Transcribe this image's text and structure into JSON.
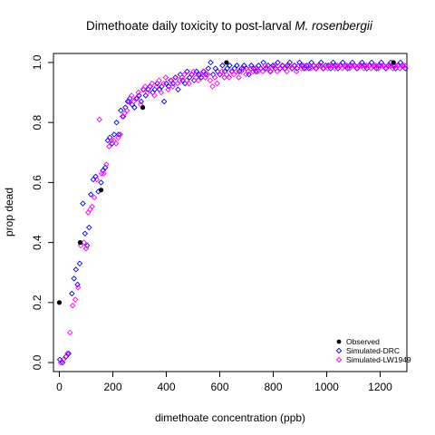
{
  "chart_data": {
    "type": "scatter",
    "title": "Dimethoate daily toxicity to post-larval ",
    "title_italic": "M. rosenbergii",
    "xlabel": "dimethoate concentration (ppb)",
    "ylabel": "prop dead",
    "xlim": [
      -22,
      1300
    ],
    "ylim": [
      -0.03,
      1.03
    ],
    "xticks": [
      0,
      200,
      400,
      600,
      800,
      1000,
      1200
    ],
    "yticks": [
      0.0,
      0.2,
      0.4,
      0.6,
      0.8,
      1.0
    ],
    "ytick_labels": [
      "0.0",
      "0.2",
      "0.4",
      "0.6",
      "0.8",
      "1.0"
    ],
    "grid": false,
    "legend_position": "bottom-right",
    "series": [
      {
        "name": "Observed",
        "marker": "filled-circle",
        "color": "#000000",
        "points": [
          [
            0,
            0.2
          ],
          [
            78,
            0.4
          ],
          [
            156,
            0.575
          ],
          [
            312,
            0.85
          ],
          [
            625,
            1.0
          ],
          [
            1250,
            1.0
          ]
        ]
      },
      {
        "name": "Simulated-DRC",
        "marker": "open-diamond",
        "color": "#0000ff",
        "points": [
          [
            2,
            0.01
          ],
          [
            12,
            0.0
          ],
          [
            25,
            0.02
          ],
          [
            35,
            0.03
          ],
          [
            47,
            0.23
          ],
          [
            55,
            0.28
          ],
          [
            62,
            0.31
          ],
          [
            68,
            0.26
          ],
          [
            76,
            0.33
          ],
          [
            88,
            0.53
          ],
          [
            96,
            0.43
          ],
          [
            104,
            0.39
          ],
          [
            111,
            0.45
          ],
          [
            118,
            0.56
          ],
          [
            127,
            0.61
          ],
          [
            136,
            0.62
          ],
          [
            146,
            0.57
          ],
          [
            156,
            0.6
          ],
          [
            163,
            0.64
          ],
          [
            172,
            0.65
          ],
          [
            181,
            0.74
          ],
          [
            189,
            0.75
          ],
          [
            197,
            0.73
          ],
          [
            205,
            0.76
          ],
          [
            214,
            0.8
          ],
          [
            222,
            0.76
          ],
          [
            230,
            0.84
          ],
          [
            239,
            0.82
          ],
          [
            247,
            0.85
          ],
          [
            256,
            0.87
          ],
          [
            264,
            0.88
          ],
          [
            272,
            0.86
          ],
          [
            281,
            0.85
          ],
          [
            290,
            0.88
          ],
          [
            298,
            0.89
          ],
          [
            306,
            0.87
          ],
          [
            315,
            0.91
          ],
          [
            323,
            0.89
          ],
          [
            332,
            0.91
          ],
          [
            340,
            0.92
          ],
          [
            349,
            0.9
          ],
          [
            357,
            0.91
          ],
          [
            366,
            0.93
          ],
          [
            374,
            0.91
          ],
          [
            383,
            0.92
          ],
          [
            392,
            0.87
          ],
          [
            400,
            0.93
          ],
          [
            409,
            0.92
          ],
          [
            418,
            0.94
          ],
          [
            426,
            0.93
          ],
          [
            435,
            0.95
          ],
          [
            444,
            0.91
          ],
          [
            452,
            0.96
          ],
          [
            461,
            0.94
          ],
          [
            470,
            0.93
          ],
          [
            478,
            0.97
          ],
          [
            487,
            0.95
          ],
          [
            496,
            0.96
          ],
          [
            504,
            0.94
          ],
          [
            513,
            0.97
          ],
          [
            522,
            0.96
          ],
          [
            531,
            0.95
          ],
          [
            540,
            0.97
          ],
          [
            548,
            0.96
          ],
          [
            557,
            0.98
          ],
          [
            566,
            1.0
          ],
          [
            575,
            0.96
          ],
          [
            584,
            0.98
          ],
          [
            592,
            0.97
          ],
          [
            601,
            0.96
          ],
          [
            610,
            0.99
          ],
          [
            619,
            0.97
          ],
          [
            628,
            0.98
          ],
          [
            637,
            0.99
          ],
          [
            646,
            0.97
          ],
          [
            655,
            0.98
          ],
          [
            664,
            0.99
          ],
          [
            673,
            0.97
          ],
          [
            682,
            0.98
          ],
          [
            691,
            0.99
          ],
          [
            700,
            0.98
          ],
          [
            709,
            0.96
          ],
          [
            718,
            0.99
          ],
          [
            727,
            0.98
          ],
          [
            736,
            0.97
          ],
          [
            745,
            0.99
          ],
          [
            754,
            0.98
          ],
          [
            763,
            1.0
          ],
          [
            772,
            0.98
          ],
          [
            781,
            0.99
          ],
          [
            790,
            0.97
          ],
          [
            799,
            0.99
          ],
          [
            808,
            0.98
          ],
          [
            817,
            1.0
          ],
          [
            826,
            0.98
          ],
          [
            835,
            0.99
          ],
          [
            844,
            0.98
          ],
          [
            853,
            0.99
          ],
          [
            862,
            1.0
          ],
          [
            871,
            0.98
          ],
          [
            880,
            0.99
          ],
          [
            889,
            0.98
          ],
          [
            898,
            1.0
          ],
          [
            907,
            0.99
          ],
          [
            916,
            0.98
          ],
          [
            925,
            0.99
          ],
          [
            934,
            0.98
          ],
          [
            943,
            1.0
          ],
          [
            952,
            0.99
          ],
          [
            961,
            0.98
          ],
          [
            970,
            0.99
          ],
          [
            979,
            1.0
          ],
          [
            988,
            0.98
          ],
          [
            997,
            0.99
          ],
          [
            1006,
            0.99
          ],
          [
            1015,
            0.98
          ],
          [
            1024,
            1.0
          ],
          [
            1033,
            0.99
          ],
          [
            1042,
            0.98
          ],
          [
            1051,
            0.99
          ],
          [
            1060,
            1.0
          ],
          [
            1069,
            0.99
          ],
          [
            1078,
            0.98
          ],
          [
            1087,
            0.99
          ],
          [
            1096,
            1.0
          ],
          [
            1105,
            0.99
          ],
          [
            1114,
            0.98
          ],
          [
            1123,
            0.99
          ],
          [
            1132,
            1.0
          ],
          [
            1141,
            0.99
          ],
          [
            1150,
            0.98
          ],
          [
            1159,
            0.99
          ],
          [
            1168,
            1.0
          ],
          [
            1177,
            0.99
          ],
          [
            1186,
            0.98
          ],
          [
            1195,
            0.99
          ],
          [
            1204,
            1.0
          ],
          [
            1213,
            0.99
          ],
          [
            1222,
            0.98
          ],
          [
            1231,
            0.99
          ],
          [
            1240,
            1.0
          ],
          [
            1249,
            0.99
          ],
          [
            1258,
            0.98
          ],
          [
            1267,
            0.99
          ],
          [
            1276,
            1.0
          ],
          [
            1285,
            0.99
          ],
          [
            1294,
            0.98
          ]
        ]
      },
      {
        "name": "Simulated-LW1949",
        "marker": "open-diamond",
        "color": "#ff00ff",
        "points": [
          [
            5,
            0.0
          ],
          [
            15,
            0.01
          ],
          [
            30,
            0.03
          ],
          [
            40,
            0.1
          ],
          [
            50,
            0.19
          ],
          [
            60,
            0.21
          ],
          [
            70,
            0.25
          ],
          [
            80,
            0.39
          ],
          [
            92,
            0.4
          ],
          [
            100,
            0.38
          ],
          [
            108,
            0.5
          ],
          [
            115,
            0.51
          ],
          [
            123,
            0.52
          ],
          [
            131,
            0.55
          ],
          [
            140,
            0.61
          ],
          [
            150,
            0.81
          ],
          [
            158,
            0.63
          ],
          [
            166,
            0.63
          ],
          [
            176,
            0.66
          ],
          [
            186,
            0.72
          ],
          [
            195,
            0.74
          ],
          [
            204,
            0.74
          ],
          [
            212,
            0.73
          ],
          [
            220,
            0.75
          ],
          [
            228,
            0.76
          ],
          [
            236,
            0.82
          ],
          [
            244,
            0.83
          ],
          [
            253,
            0.84
          ],
          [
            261,
            0.87
          ],
          [
            270,
            0.89
          ],
          [
            278,
            0.87
          ],
          [
            287,
            0.88
          ],
          [
            296,
            0.9
          ],
          [
            304,
            0.86
          ],
          [
            313,
            0.91
          ],
          [
            321,
            0.92
          ],
          [
            330,
            0.9
          ],
          [
            338,
            0.92
          ],
          [
            347,
            0.93
          ],
          [
            356,
            0.89
          ],
          [
            364,
            0.92
          ],
          [
            373,
            0.94
          ],
          [
            381,
            0.9
          ],
          [
            390,
            0.93
          ],
          [
            398,
            0.95
          ],
          [
            407,
            0.91
          ],
          [
            416,
            0.94
          ],
          [
            424,
            0.92
          ],
          [
            433,
            0.95
          ],
          [
            442,
            0.93
          ],
          [
            450,
            0.94
          ],
          [
            459,
            0.95
          ],
          [
            468,
            0.96
          ],
          [
            476,
            0.94
          ],
          [
            485,
            0.93
          ],
          [
            494,
            0.96
          ],
          [
            502,
            0.97
          ],
          [
            511,
            0.95
          ],
          [
            520,
            0.94
          ],
          [
            529,
            0.96
          ],
          [
            538,
            0.97
          ],
          [
            546,
            0.95
          ],
          [
            555,
            0.96
          ],
          [
            564,
            0.94
          ],
          [
            573,
            0.92
          ],
          [
            582,
            0.95
          ],
          [
            590,
            0.93
          ],
          [
            599,
            0.96
          ],
          [
            608,
            0.97
          ],
          [
            617,
            0.95
          ],
          [
            626,
            0.96
          ],
          [
            635,
            0.95
          ],
          [
            644,
            0.97
          ],
          [
            653,
            0.96
          ],
          [
            662,
            0.97
          ],
          [
            671,
            0.95
          ],
          [
            680,
            0.97
          ],
          [
            689,
            0.98
          ],
          [
            698,
            0.96
          ],
          [
            707,
            0.97
          ],
          [
            716,
            0.98
          ],
          [
            725,
            0.97
          ],
          [
            734,
            0.98
          ],
          [
            743,
            0.97
          ],
          [
            752,
            0.98
          ],
          [
            761,
            0.97
          ],
          [
            770,
            0.99
          ],
          [
            779,
            0.98
          ],
          [
            788,
            0.97
          ],
          [
            797,
            0.98
          ],
          [
            806,
            0.99
          ],
          [
            815,
            0.97
          ],
          [
            824,
            0.98
          ],
          [
            833,
            0.99
          ],
          [
            842,
            0.98
          ],
          [
            851,
            0.97
          ],
          [
            860,
            0.99
          ],
          [
            869,
            0.98
          ],
          [
            878,
            0.99
          ],
          [
            887,
            0.97
          ],
          [
            896,
            0.99
          ],
          [
            905,
            0.98
          ],
          [
            914,
            0.99
          ],
          [
            923,
            0.98
          ],
          [
            932,
            0.99
          ],
          [
            941,
            0.98
          ],
          [
            950,
            0.99
          ],
          [
            959,
            0.98
          ],
          [
            968,
            0.99
          ],
          [
            977,
            0.99
          ],
          [
            986,
            0.98
          ],
          [
            995,
            0.99
          ],
          [
            1004,
            0.98
          ],
          [
            1013,
            0.99
          ],
          [
            1022,
            0.99
          ],
          [
            1031,
            0.98
          ],
          [
            1040,
            0.99
          ],
          [
            1049,
            0.99
          ],
          [
            1058,
            0.98
          ],
          [
            1067,
            0.99
          ],
          [
            1076,
            0.99
          ],
          [
            1085,
            0.98
          ],
          [
            1094,
            0.99
          ],
          [
            1103,
            0.99
          ],
          [
            1112,
            0.98
          ],
          [
            1121,
            0.99
          ],
          [
            1130,
            0.99
          ],
          [
            1139,
            0.98
          ],
          [
            1148,
            0.99
          ],
          [
            1157,
            0.99
          ],
          [
            1166,
            0.98
          ],
          [
            1175,
            0.99
          ],
          [
            1184,
            0.99
          ],
          [
            1193,
            0.98
          ],
          [
            1202,
            0.99
          ],
          [
            1211,
            0.99
          ],
          [
            1220,
            0.98
          ],
          [
            1229,
            0.99
          ],
          [
            1238,
            0.99
          ],
          [
            1247,
            0.98
          ],
          [
            1256,
            0.99
          ],
          [
            1265,
            0.99
          ],
          [
            1274,
            0.98
          ],
          [
            1283,
            0.99
          ],
          [
            1292,
            0.99
          ]
        ]
      }
    ]
  }
}
